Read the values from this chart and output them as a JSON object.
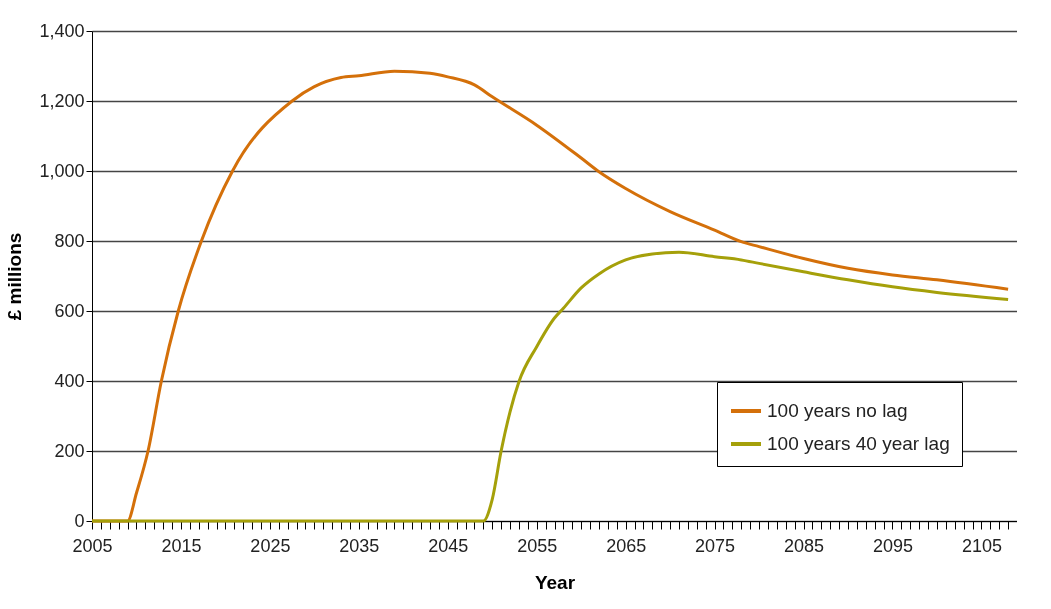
{
  "chart_data": {
    "type": "line",
    "xlabel": "Year",
    "ylabel": "£ millions",
    "xlim": [
      2005,
      2109
    ],
    "ylim": [
      0,
      1400
    ],
    "xticks": [
      2005,
      {
        "value": 2006,
        "label": null
      },
      {
        "value": 2007,
        "label": null
      },
      {
        "value": 2008,
        "label": null
      },
      {
        "value": 2009,
        "label": null
      },
      {
        "value": 2010,
        "label": null
      },
      {
        "value": 2011,
        "label": null
      },
      {
        "value": 2012,
        "label": null
      },
      {
        "value": 2013,
        "label": null
      },
      {
        "value": 2014,
        "label": null
      },
      2015,
      {
        "value": 2016,
        "label": null
      },
      {
        "value": 2017,
        "label": null
      },
      {
        "value": 2018,
        "label": null
      },
      {
        "value": 2019,
        "label": null
      },
      {
        "value": 2020,
        "label": null
      },
      {
        "value": 2021,
        "label": null
      },
      {
        "value": 2022,
        "label": null
      },
      {
        "value": 2023,
        "label": null
      },
      {
        "value": 2024,
        "label": null
      },
      2025,
      {
        "value": 2026,
        "label": null
      },
      {
        "value": 2027,
        "label": null
      },
      {
        "value": 2028,
        "label": null
      },
      {
        "value": 2029,
        "label": null
      },
      {
        "value": 2030,
        "label": null
      },
      {
        "value": 2031,
        "label": null
      },
      {
        "value": 2032,
        "label": null
      },
      {
        "value": 2033,
        "label": null
      },
      {
        "value": 2034,
        "label": null
      },
      2035,
      {
        "value": 2036,
        "label": null
      },
      {
        "value": 2037,
        "label": null
      },
      {
        "value": 2038,
        "label": null
      },
      {
        "value": 2039,
        "label": null
      },
      {
        "value": 2040,
        "label": null
      },
      {
        "value": 2041,
        "label": null
      },
      {
        "value": 2042,
        "label": null
      },
      {
        "value": 2043,
        "label": null
      },
      {
        "value": 2044,
        "label": null
      },
      2045,
      {
        "value": 2046,
        "label": null
      },
      {
        "value": 2047,
        "label": null
      },
      {
        "value": 2048,
        "label": null
      },
      {
        "value": 2049,
        "label": null
      },
      {
        "value": 2050,
        "label": null
      },
      {
        "value": 2051,
        "label": null
      },
      {
        "value": 2052,
        "label": null
      },
      {
        "value": 2053,
        "label": null
      },
      {
        "value": 2054,
        "label": null
      },
      2055,
      {
        "value": 2056,
        "label": null
      },
      {
        "value": 2057,
        "label": null
      },
      {
        "value": 2058,
        "label": null
      },
      {
        "value": 2059,
        "label": null
      },
      {
        "value": 2060,
        "label": null
      },
      {
        "value": 2061,
        "label": null
      },
      {
        "value": 2062,
        "label": null
      },
      {
        "value": 2063,
        "label": null
      },
      {
        "value": 2064,
        "label": null
      },
      2065,
      {
        "value": 2066,
        "label": null
      },
      {
        "value": 2067,
        "label": null
      },
      {
        "value": 2068,
        "label": null
      },
      {
        "value": 2069,
        "label": null
      },
      {
        "value": 2070,
        "label": null
      },
      {
        "value": 2071,
        "label": null
      },
      {
        "value": 2072,
        "label": null
      },
      {
        "value": 2073,
        "label": null
      },
      {
        "value": 2074,
        "label": null
      },
      2075,
      {
        "value": 2076,
        "label": null
      },
      {
        "value": 2077,
        "label": null
      },
      {
        "value": 2078,
        "label": null
      },
      {
        "value": 2079,
        "label": null
      },
      {
        "value": 2080,
        "label": null
      },
      {
        "value": 2081,
        "label": null
      },
      {
        "value": 2082,
        "label": null
      },
      {
        "value": 2083,
        "label": null
      },
      {
        "value": 2084,
        "label": null
      },
      2085,
      {
        "value": 2086,
        "label": null
      },
      {
        "value": 2087,
        "label": null
      },
      {
        "value": 2088,
        "label": null
      },
      {
        "value": 2089,
        "label": null
      },
      {
        "value": 2090,
        "label": null
      },
      {
        "value": 2091,
        "label": null
      },
      {
        "value": 2092,
        "label": null
      },
      {
        "value": 2093,
        "label": null
      },
      {
        "value": 2094,
        "label": null
      },
      2095,
      {
        "value": 2096,
        "label": null
      },
      {
        "value": 2097,
        "label": null
      },
      {
        "value": 2098,
        "label": null
      },
      {
        "value": 2099,
        "label": null
      },
      {
        "value": 2100,
        "label": null
      },
      {
        "value": 2101,
        "label": null
      },
      {
        "value": 2102,
        "label": null
      },
      {
        "value": 2103,
        "label": null
      },
      {
        "value": 2104,
        "label": null
      },
      2105,
      {
        "value": 2106,
        "label": null
      },
      {
        "value": 2107,
        "label": null
      },
      {
        "value": 2108,
        "label": null
      }
    ],
    "yticks": [
      0,
      200,
      400,
      600,
      800,
      {
        "value": 1000,
        "label": "1,000"
      },
      {
        "value": 1200,
        "label": "1,200"
      },
      {
        "value": 1400,
        "label": "1,400"
      }
    ],
    "grid": "y",
    "legend": "bottom right",
    "marker": "none",
    "line_style": "solid",
    "series": [
      {
        "name": "100 years no lag",
        "color": "#d4700a",
        "x": [
          2005,
          2009,
          2010,
          2011.3,
          2012.8,
          2014.7,
          2017.3,
          2020.8,
          2027.5,
          2030,
          2033,
          2035,
          2039,
          2043,
          2045,
          2048,
          2050,
          2055,
          2060,
          2062,
          2065,
          2070,
          2075,
          2078,
          2080,
          2085,
          2090,
          2095,
          2100,
          2108
        ],
        "values": [
          0,
          0,
          80,
          200,
          400,
          600,
          800,
          1000,
          1200,
          1241,
          1267,
          1272,
          1285,
          1279,
          1269,
          1246,
          1212,
          1131,
          1037,
          998,
          950,
          884,
          831,
          798,
          784,
          750,
          722,
          703,
          689,
          662
        ]
      },
      {
        "name": "100 years 40 year lag",
        "color": "#a5a00a",
        "x": [
          2005,
          2049,
          2050,
          2051,
          2052,
          2053,
          2055,
          2057,
          2058,
          2060,
          2062,
          2065,
          2068,
          2071,
          2075,
          2078,
          2080,
          2085,
          2090,
          2095,
          2100,
          2108
        ],
        "values": [
          0,
          0,
          62,
          200,
          312,
          398,
          498,
          580,
          608,
          666,
          706,
          746,
          763,
          768,
          755,
          746,
          736,
          712,
          689,
          669,
          653,
          633
        ]
      }
    ]
  }
}
